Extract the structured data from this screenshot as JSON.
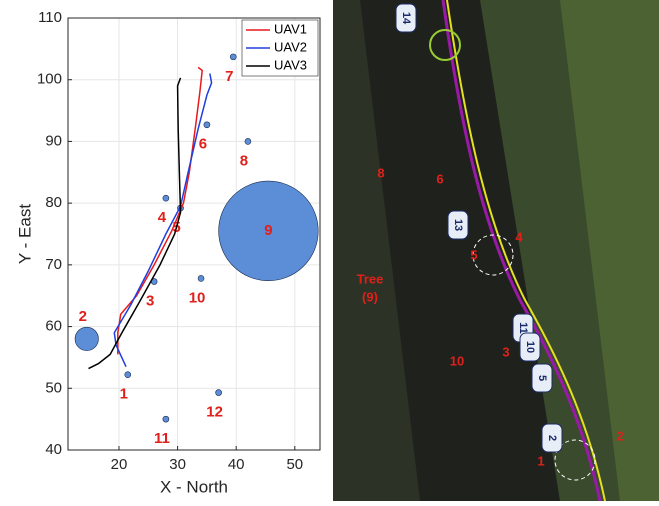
{
  "chart_data": {
    "type": "line",
    "xlabel": "X - North",
    "ylabel": "Y - East",
    "xlim": [
      11.3,
      54.3
    ],
    "ylim": [
      40,
      110
    ],
    "xticks": [
      20,
      30,
      40,
      50
    ],
    "yticks": [
      40,
      50,
      60,
      70,
      80,
      90,
      100,
      110
    ],
    "grid": true,
    "legend": "upper right",
    "series": [
      {
        "name": "UAV1",
        "color": "#e8191b",
        "x": [
          19.8,
          19.8,
          20.3,
          23,
          26,
          29,
          31,
          32,
          33,
          33.8,
          34.2,
          33.5
        ],
        "y": [
          55.5,
          59,
          62,
          65,
          70,
          75.5,
          80,
          85,
          92,
          98,
          101.5,
          102
        ]
      },
      {
        "name": "UAV2",
        "color": "#1f3fe0",
        "x": [
          21.2,
          19.5,
          19.2,
          22,
          25,
          28,
          30.5,
          31.8,
          33.5,
          35,
          35.8,
          35.5
        ],
        "y": [
          53.5,
          57,
          59,
          63.5,
          69,
          75,
          79.5,
          85,
          92,
          97.5,
          99.5,
          101
        ]
      },
      {
        "name": "UAV3",
        "color": "#000000",
        "x": [
          14.8,
          16.5,
          18.5,
          20.5,
          23.5,
          27,
          29.5,
          30.5,
          30.3,
          30.1,
          30,
          30.5
        ],
        "y": [
          53.2,
          54,
          55.5,
          59,
          64,
          70,
          75,
          78.5,
          85,
          92,
          99,
          100.3
        ]
      }
    ],
    "obstacles": {
      "color": "#5b8ed6",
      "labels": [
        "1",
        "2",
        "3",
        "4",
        "5",
        "6",
        "7",
        "8",
        "9",
        "10",
        "11",
        "12"
      ],
      "x": [
        21.5,
        14.5,
        26,
        28,
        30.5,
        35,
        39.5,
        42,
        45.5,
        34,
        28,
        37
      ],
      "y": [
        52.2,
        58,
        67.3,
        80.8,
        79.2,
        92.7,
        103.7,
        90,
        75.5,
        67.8,
        45,
        49.3
      ],
      "size": [
        0.5,
        2,
        0.5,
        0.5,
        0.5,
        0.5,
        0.5,
        0.5,
        8.5,
        0.5,
        0.5,
        0.5
      ]
    }
  },
  "image": {
    "labels": [
      "1",
      "2",
      "3",
      "4",
      "5",
      "6",
      "8",
      "10",
      "Tree",
      "(9)"
    ],
    "badges": [
      "14",
      "13",
      "11",
      "10",
      "5",
      "2"
    ]
  }
}
